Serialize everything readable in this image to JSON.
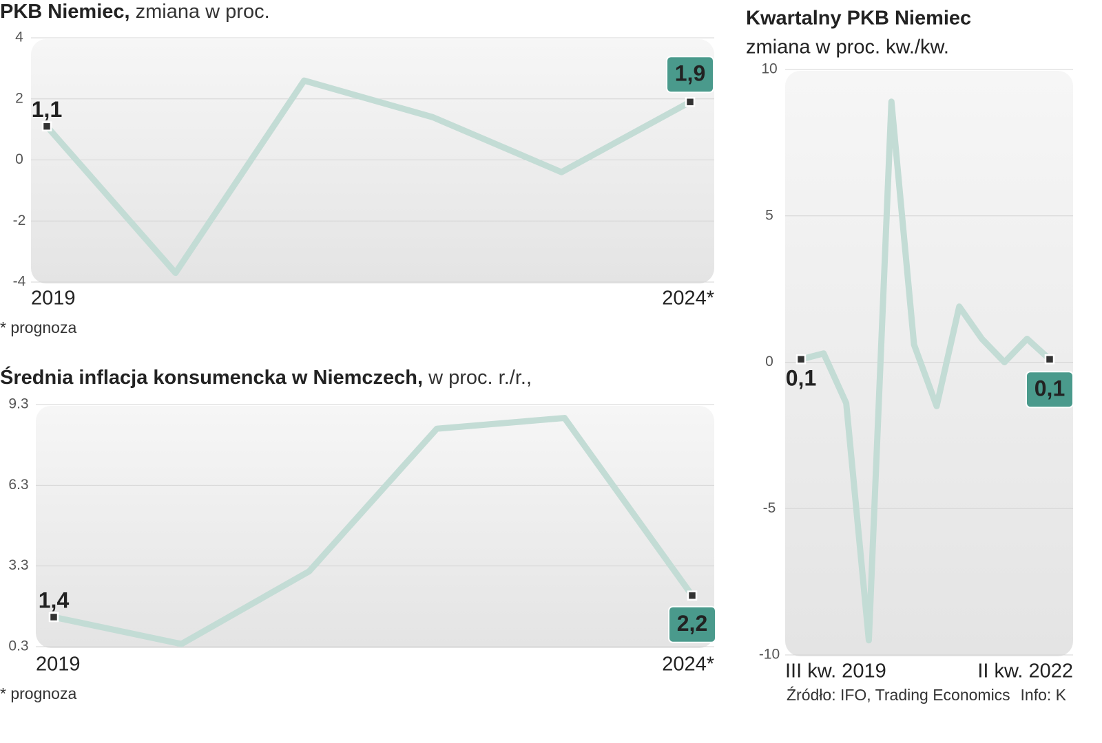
{
  "chart_data": [
    {
      "type": "line",
      "title": "PKB Niemiec,",
      "subtitle": " zmiana w proc.",
      "categories": [
        "2019",
        null,
        null,
        null,
        null,
        "2024*"
      ],
      "values": [
        1.1,
        -3.7,
        2.6,
        1.4,
        -0.4,
        1.9
      ],
      "value_labels": [
        "1,1",
        null,
        null,
        null,
        null,
        "1,9"
      ],
      "color": "#c3dcd5",
      "label_color": "#4a9a8c",
      "ylim": [
        -4,
        4
      ],
      "yticks": [
        -4,
        -2,
        0,
        2,
        4
      ],
      "grid": true,
      "note": "* prognoza"
    },
    {
      "type": "line",
      "title": "Średnia inflacja konsumencka w Niemczech,",
      "subtitle": " w proc. r./r.,",
      "categories": [
        "2019",
        null,
        null,
        null,
        null,
        "2024*"
      ],
      "values": [
        1.4,
        0.4,
        3.1,
        8.4,
        8.8,
        2.2
      ],
      "value_labels": [
        "1,4",
        null,
        null,
        null,
        null,
        "2,2"
      ],
      "color": "#c3dcd5",
      "label_color": "#4a9a8c",
      "ylim": [
        0.3,
        9.3
      ],
      "yticks": [
        0.3,
        3.3,
        6.3,
        9.3
      ],
      "grid": true,
      "note": "* prognoza"
    },
    {
      "type": "line",
      "title": "Kwartalny PKB Niemiec",
      "subtitle": "zmiana w proc. kw./kw.",
      "categories": [
        "III kw. 2019",
        null,
        null,
        null,
        null,
        null,
        null,
        null,
        null,
        null,
        null,
        "II kw. 2022"
      ],
      "values": [
        0.1,
        0.3,
        -1.4,
        -9.5,
        8.9,
        0.6,
        -1.5,
        1.9,
        0.8,
        0.0,
        0.8,
        0.1
      ],
      "value_labels": [
        "0,1",
        null,
        null,
        null,
        null,
        null,
        null,
        null,
        null,
        null,
        null,
        "0,1"
      ],
      "color": "#c3dcd5",
      "label_color": "#4a9a8c",
      "ylim": [
        -10,
        10
      ],
      "yticks": [
        -10,
        -5,
        0,
        5,
        10
      ],
      "grid": true
    }
  ],
  "source": "Źródło: IFO, Trading Economics",
  "credit": "Info: K"
}
